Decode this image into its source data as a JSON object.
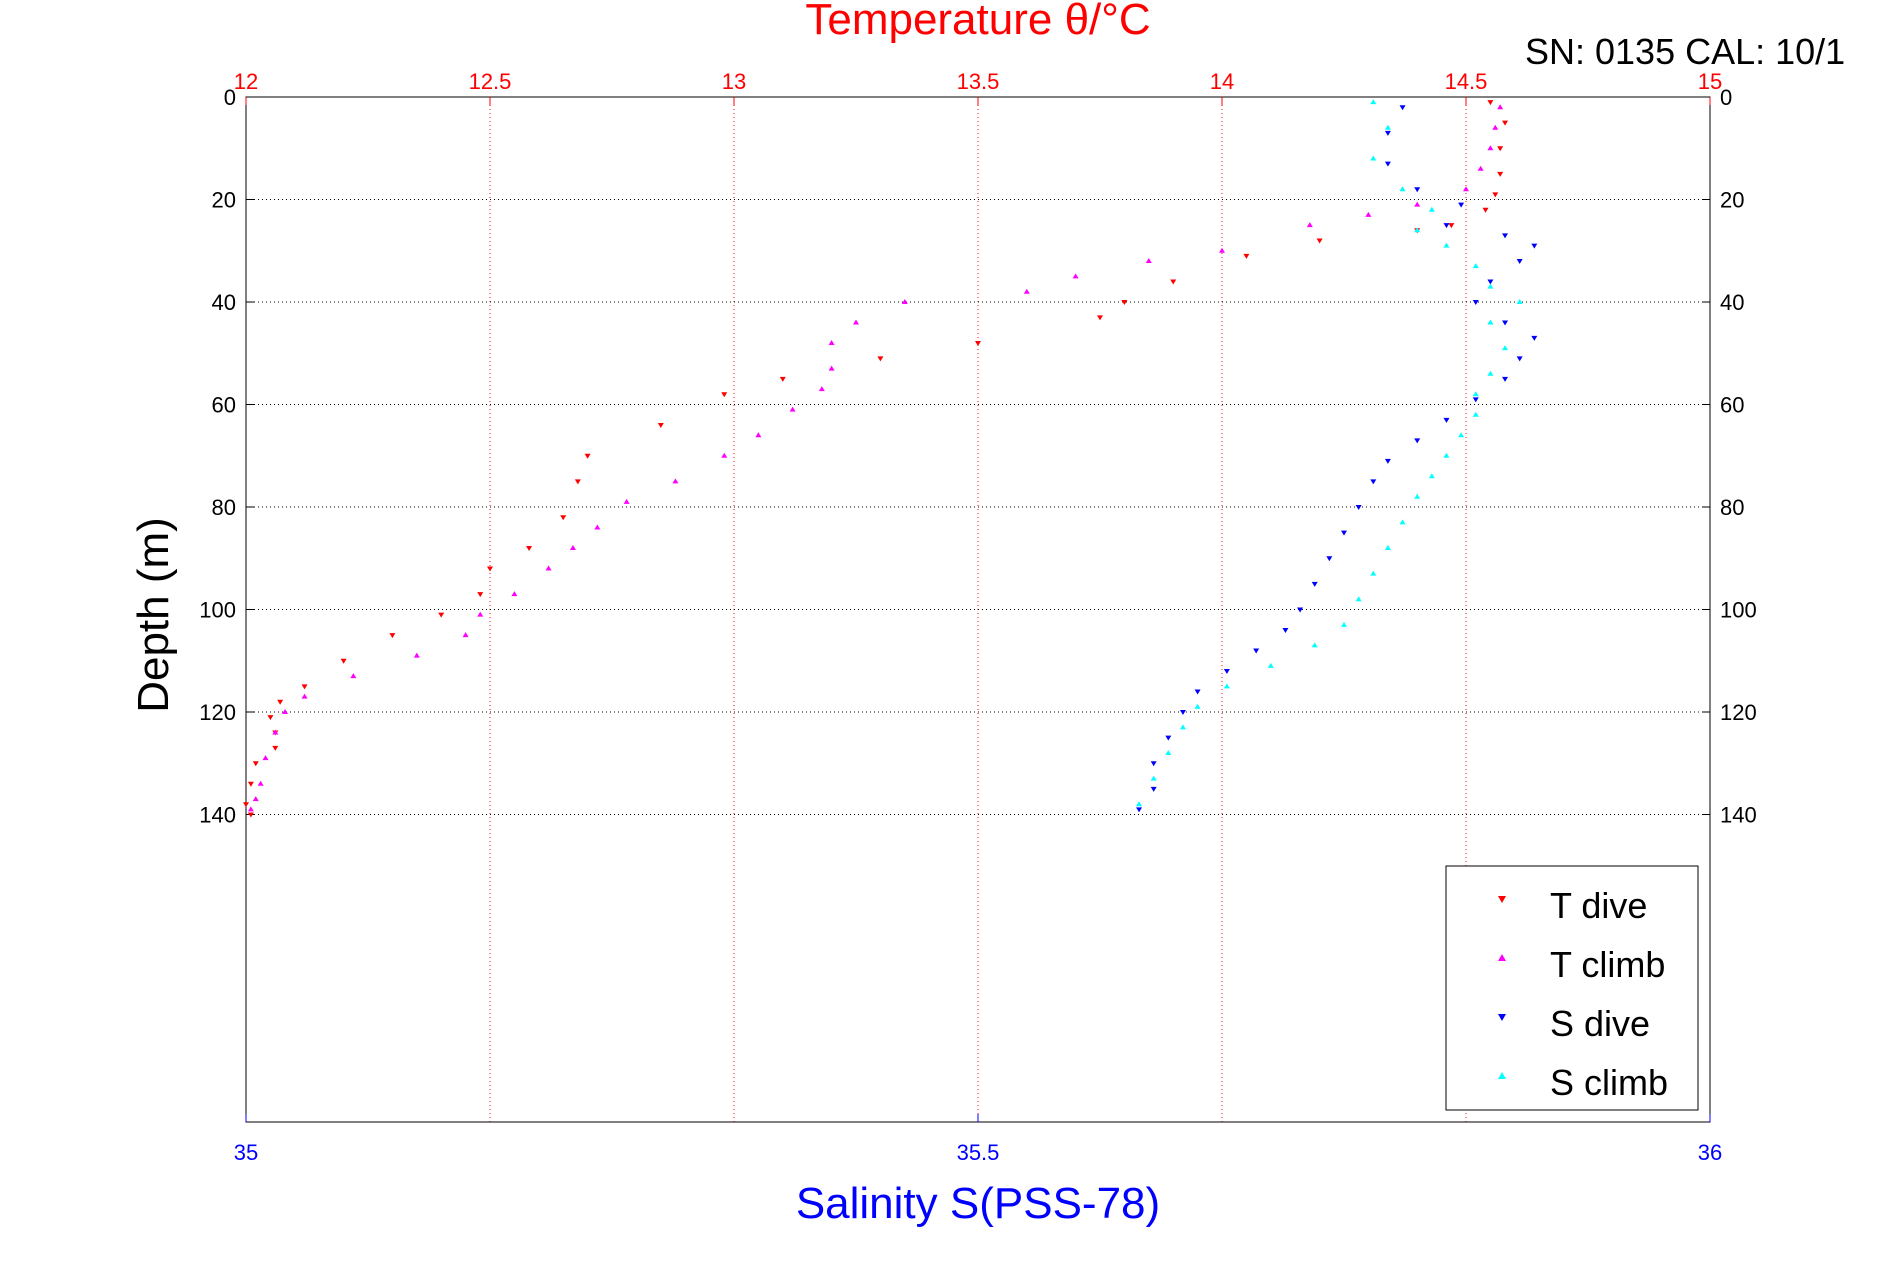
{
  "chart_data": {
    "type": "scatter",
    "title": "Temperature θ/°C",
    "serial_label": "SN: 0135  CAL: 10/1",
    "xlabel_bottom": "Salinity S(PSS-78)",
    "ylabel": "Depth (m)",
    "x_top": {
      "name": "Temperature θ/°C",
      "lim": [
        12,
        15
      ],
      "ticks": [
        12,
        12.5,
        13,
        13.5,
        14,
        14.5,
        15
      ],
      "tick_labels": [
        "12",
        "12.5",
        "13",
        "13.5",
        "14",
        "14.5",
        "15"
      ],
      "color": "#ff0000"
    },
    "x_bottom": {
      "name": "Salinity S(PSS-78)",
      "lim": [
        35,
        36
      ],
      "ticks": [
        35,
        35.5,
        36
      ],
      "tick_labels": [
        "35",
        "35.5",
        "36"
      ],
      "color": "#0000ff"
    },
    "y": {
      "lim": [
        0,
        200
      ],
      "reversed": true,
      "ticks": [
        0,
        20,
        40,
        60,
        80,
        100,
        120,
        140
      ],
      "tick_labels": [
        "0",
        "20",
        "40",
        "60",
        "80",
        "100",
        "120",
        "140"
      ]
    },
    "grid": true,
    "legend_position": "bottom-right",
    "series": [
      {
        "name": "T dive",
        "axis": "top",
        "color": "#ff0000",
        "marker": "triangle-down",
        "points": [
          [
            14.55,
            1
          ],
          [
            14.58,
            5
          ],
          [
            14.57,
            10
          ],
          [
            14.57,
            15
          ],
          [
            14.56,
            19
          ],
          [
            14.54,
            22
          ],
          [
            14.47,
            25
          ],
          [
            14.4,
            26
          ],
          [
            14.2,
            28
          ],
          [
            14.05,
            31
          ],
          [
            13.9,
            36
          ],
          [
            13.8,
            40
          ],
          [
            13.75,
            43
          ],
          [
            13.5,
            48
          ],
          [
            13.3,
            51
          ],
          [
            13.1,
            55
          ],
          [
            12.98,
            58
          ],
          [
            12.85,
            64
          ],
          [
            12.7,
            70
          ],
          [
            12.68,
            75
          ],
          [
            12.65,
            82
          ],
          [
            12.58,
            88
          ],
          [
            12.5,
            92
          ],
          [
            12.48,
            97
          ],
          [
            12.4,
            101
          ],
          [
            12.3,
            105
          ],
          [
            12.2,
            110
          ],
          [
            12.12,
            115
          ],
          [
            12.07,
            118
          ],
          [
            12.05,
            121
          ],
          [
            12.06,
            124
          ],
          [
            12.06,
            127
          ],
          [
            12.02,
            130
          ],
          [
            12.01,
            134
          ],
          [
            12.0,
            138
          ],
          [
            12.01,
            140
          ]
        ]
      },
      {
        "name": "T climb",
        "axis": "top",
        "color": "#ff00ff",
        "marker": "triangle-up",
        "points": [
          [
            14.57,
            2
          ],
          [
            14.56,
            6
          ],
          [
            14.55,
            10
          ],
          [
            14.53,
            14
          ],
          [
            14.5,
            18
          ],
          [
            14.4,
            21
          ],
          [
            14.3,
            23
          ],
          [
            14.18,
            25
          ],
          [
            14.0,
            30
          ],
          [
            13.85,
            32
          ],
          [
            13.7,
            35
          ],
          [
            13.6,
            38
          ],
          [
            13.35,
            40
          ],
          [
            13.25,
            44
          ],
          [
            13.2,
            48
          ],
          [
            13.2,
            53
          ],
          [
            13.18,
            57
          ],
          [
            13.12,
            61
          ],
          [
            13.05,
            66
          ],
          [
            12.98,
            70
          ],
          [
            12.88,
            75
          ],
          [
            12.78,
            79
          ],
          [
            12.72,
            84
          ],
          [
            12.67,
            88
          ],
          [
            12.62,
            92
          ],
          [
            12.55,
            97
          ],
          [
            12.48,
            101
          ],
          [
            12.45,
            105
          ],
          [
            12.35,
            109
          ],
          [
            12.22,
            113
          ],
          [
            12.12,
            117
          ],
          [
            12.08,
            120
          ],
          [
            12.06,
            124
          ],
          [
            12.04,
            129
          ],
          [
            12.03,
            134
          ],
          [
            12.02,
            137
          ],
          [
            12.01,
            139
          ]
        ]
      },
      {
        "name": "S dive",
        "axis": "bottom",
        "color": "#0000ff",
        "marker": "triangle-down",
        "points": [
          [
            35.79,
            2
          ],
          [
            35.78,
            7
          ],
          [
            35.78,
            13
          ],
          [
            35.8,
            18
          ],
          [
            35.83,
            21
          ],
          [
            35.82,
            25
          ],
          [
            35.86,
            27
          ],
          [
            35.88,
            29
          ],
          [
            35.87,
            32
          ],
          [
            35.85,
            36
          ],
          [
            35.84,
            40
          ],
          [
            35.86,
            44
          ],
          [
            35.88,
            47
          ],
          [
            35.87,
            51
          ],
          [
            35.86,
            55
          ],
          [
            35.84,
            59
          ],
          [
            35.82,
            63
          ],
          [
            35.8,
            67
          ],
          [
            35.78,
            71
          ],
          [
            35.77,
            75
          ],
          [
            35.76,
            80
          ],
          [
            35.75,
            85
          ],
          [
            35.74,
            90
          ],
          [
            35.73,
            95
          ],
          [
            35.72,
            100
          ],
          [
            35.71,
            104
          ],
          [
            35.69,
            108
          ],
          [
            35.67,
            112
          ],
          [
            35.65,
            116
          ],
          [
            35.64,
            120
          ],
          [
            35.63,
            125
          ],
          [
            35.62,
            130
          ],
          [
            35.62,
            135
          ],
          [
            35.61,
            139
          ]
        ]
      },
      {
        "name": "S climb",
        "axis": "bottom",
        "color": "#00ffff",
        "marker": "triangle-up",
        "points": [
          [
            35.77,
            1
          ],
          [
            35.78,
            6
          ],
          [
            35.77,
            12
          ],
          [
            35.79,
            18
          ],
          [
            35.81,
            22
          ],
          [
            35.8,
            26
          ],
          [
            35.82,
            29
          ],
          [
            35.84,
            33
          ],
          [
            35.85,
            37
          ],
          [
            35.87,
            40
          ],
          [
            35.85,
            44
          ],
          [
            35.86,
            49
          ],
          [
            35.85,
            54
          ],
          [
            35.84,
            58
          ],
          [
            35.84,
            62
          ],
          [
            35.83,
            66
          ],
          [
            35.82,
            70
          ],
          [
            35.81,
            74
          ],
          [
            35.8,
            78
          ],
          [
            35.79,
            83
          ],
          [
            35.78,
            88
          ],
          [
            35.77,
            93
          ],
          [
            35.76,
            98
          ],
          [
            35.75,
            103
          ],
          [
            35.73,
            107
          ],
          [
            35.7,
            111
          ],
          [
            35.67,
            115
          ],
          [
            35.65,
            119
          ],
          [
            35.64,
            123
          ],
          [
            35.63,
            128
          ],
          [
            35.62,
            133
          ],
          [
            35.61,
            138
          ]
        ]
      }
    ]
  },
  "legend": {
    "items": [
      {
        "label": "T dive",
        "color": "#ff0000",
        "marker": "triangle-down"
      },
      {
        "label": "T climb",
        "color": "#ff00ff",
        "marker": "triangle-up"
      },
      {
        "label": "S dive",
        "color": "#0000ff",
        "marker": "triangle-down"
      },
      {
        "label": "S climb",
        "color": "#00ffff",
        "marker": "triangle-up"
      }
    ]
  }
}
